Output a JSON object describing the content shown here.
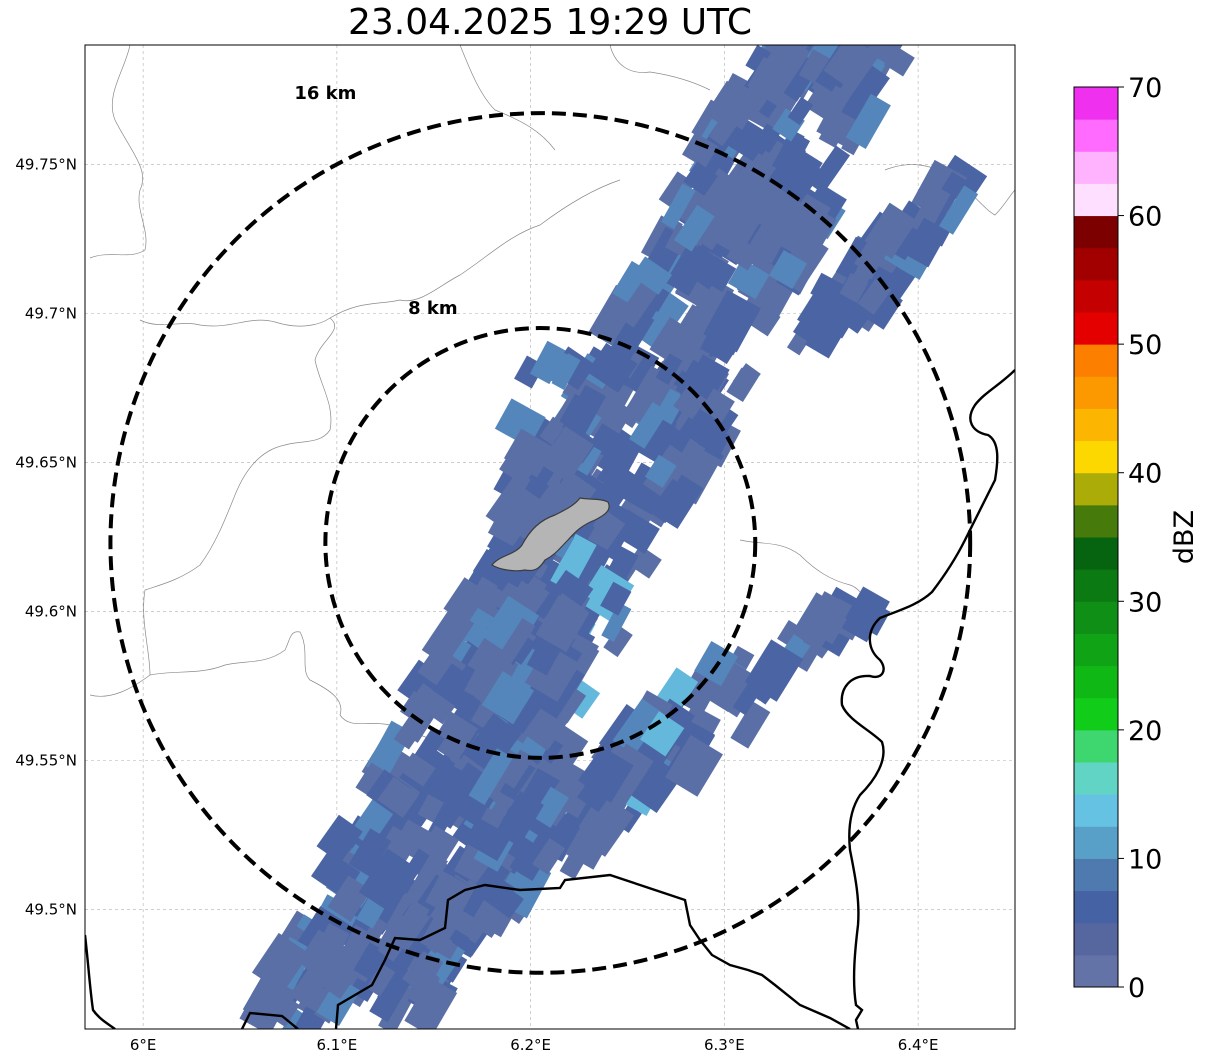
{
  "title": "23.04.2025 19:29 UTC",
  "map": {
    "lon_range": [
      5.97,
      6.45
    ],
    "lat_range": [
      49.46,
      49.79
    ],
    "lon_ticks": [
      {
        "value": 6.0,
        "label": "6°E"
      },
      {
        "value": 6.1,
        "label": "6.1°E"
      },
      {
        "value": 6.2,
        "label": "6.2°E"
      },
      {
        "value": 6.3,
        "label": "6.3°E"
      },
      {
        "value": 6.4,
        "label": "6.4°E"
      }
    ],
    "lat_ticks": [
      {
        "value": 49.5,
        "label": "49.5°N"
      },
      {
        "value": 49.55,
        "label": "49.55°N"
      },
      {
        "value": 49.6,
        "label": "49.6°N"
      },
      {
        "value": 49.65,
        "label": "49.65°N"
      },
      {
        "value": 49.7,
        "label": "49.7°N"
      },
      {
        "value": 49.75,
        "label": "49.75°N"
      }
    ],
    "radar_center": {
      "lon": 6.205,
      "lat": 49.623
    },
    "range_rings": [
      {
        "radius_km": 8,
        "label": "8 km"
      },
      {
        "radius_km": 16,
        "label": "16 km"
      }
    ],
    "grid": true,
    "coastlines_and_borders": true
  },
  "colorbar": {
    "label": "dBZ",
    "min": 0,
    "max": 70,
    "ticks": [
      "0",
      "10",
      "20",
      "30",
      "40",
      "50",
      "60",
      "70"
    ],
    "colors": [
      "#6373a8",
      "#56669f",
      "#4562a4",
      "#4f7ab0",
      "#58a0c8",
      "#66c2e2",
      "#62d4c6",
      "#3ed66e",
      "#12cc1a",
      "#10b816",
      "#10a316",
      "#0f8f15",
      "#0b7a12",
      "#066410",
      "#467a0a",
      "#acac08",
      "#fcd700",
      "#fcb500",
      "#fc9900",
      "#fc7f00",
      "#e50000",
      "#c40000",
      "#a20000",
      "#7d0000",
      "#ffdfff",
      "#ffb3ff",
      "#ff6bff",
      "#ef30ef"
    ]
  },
  "reflectivity_colors": {
    "base": "#5a6fa6",
    "mid": "#4a64a4",
    "light": "#5486bb",
    "cyan": "#63b8dc"
  }
}
